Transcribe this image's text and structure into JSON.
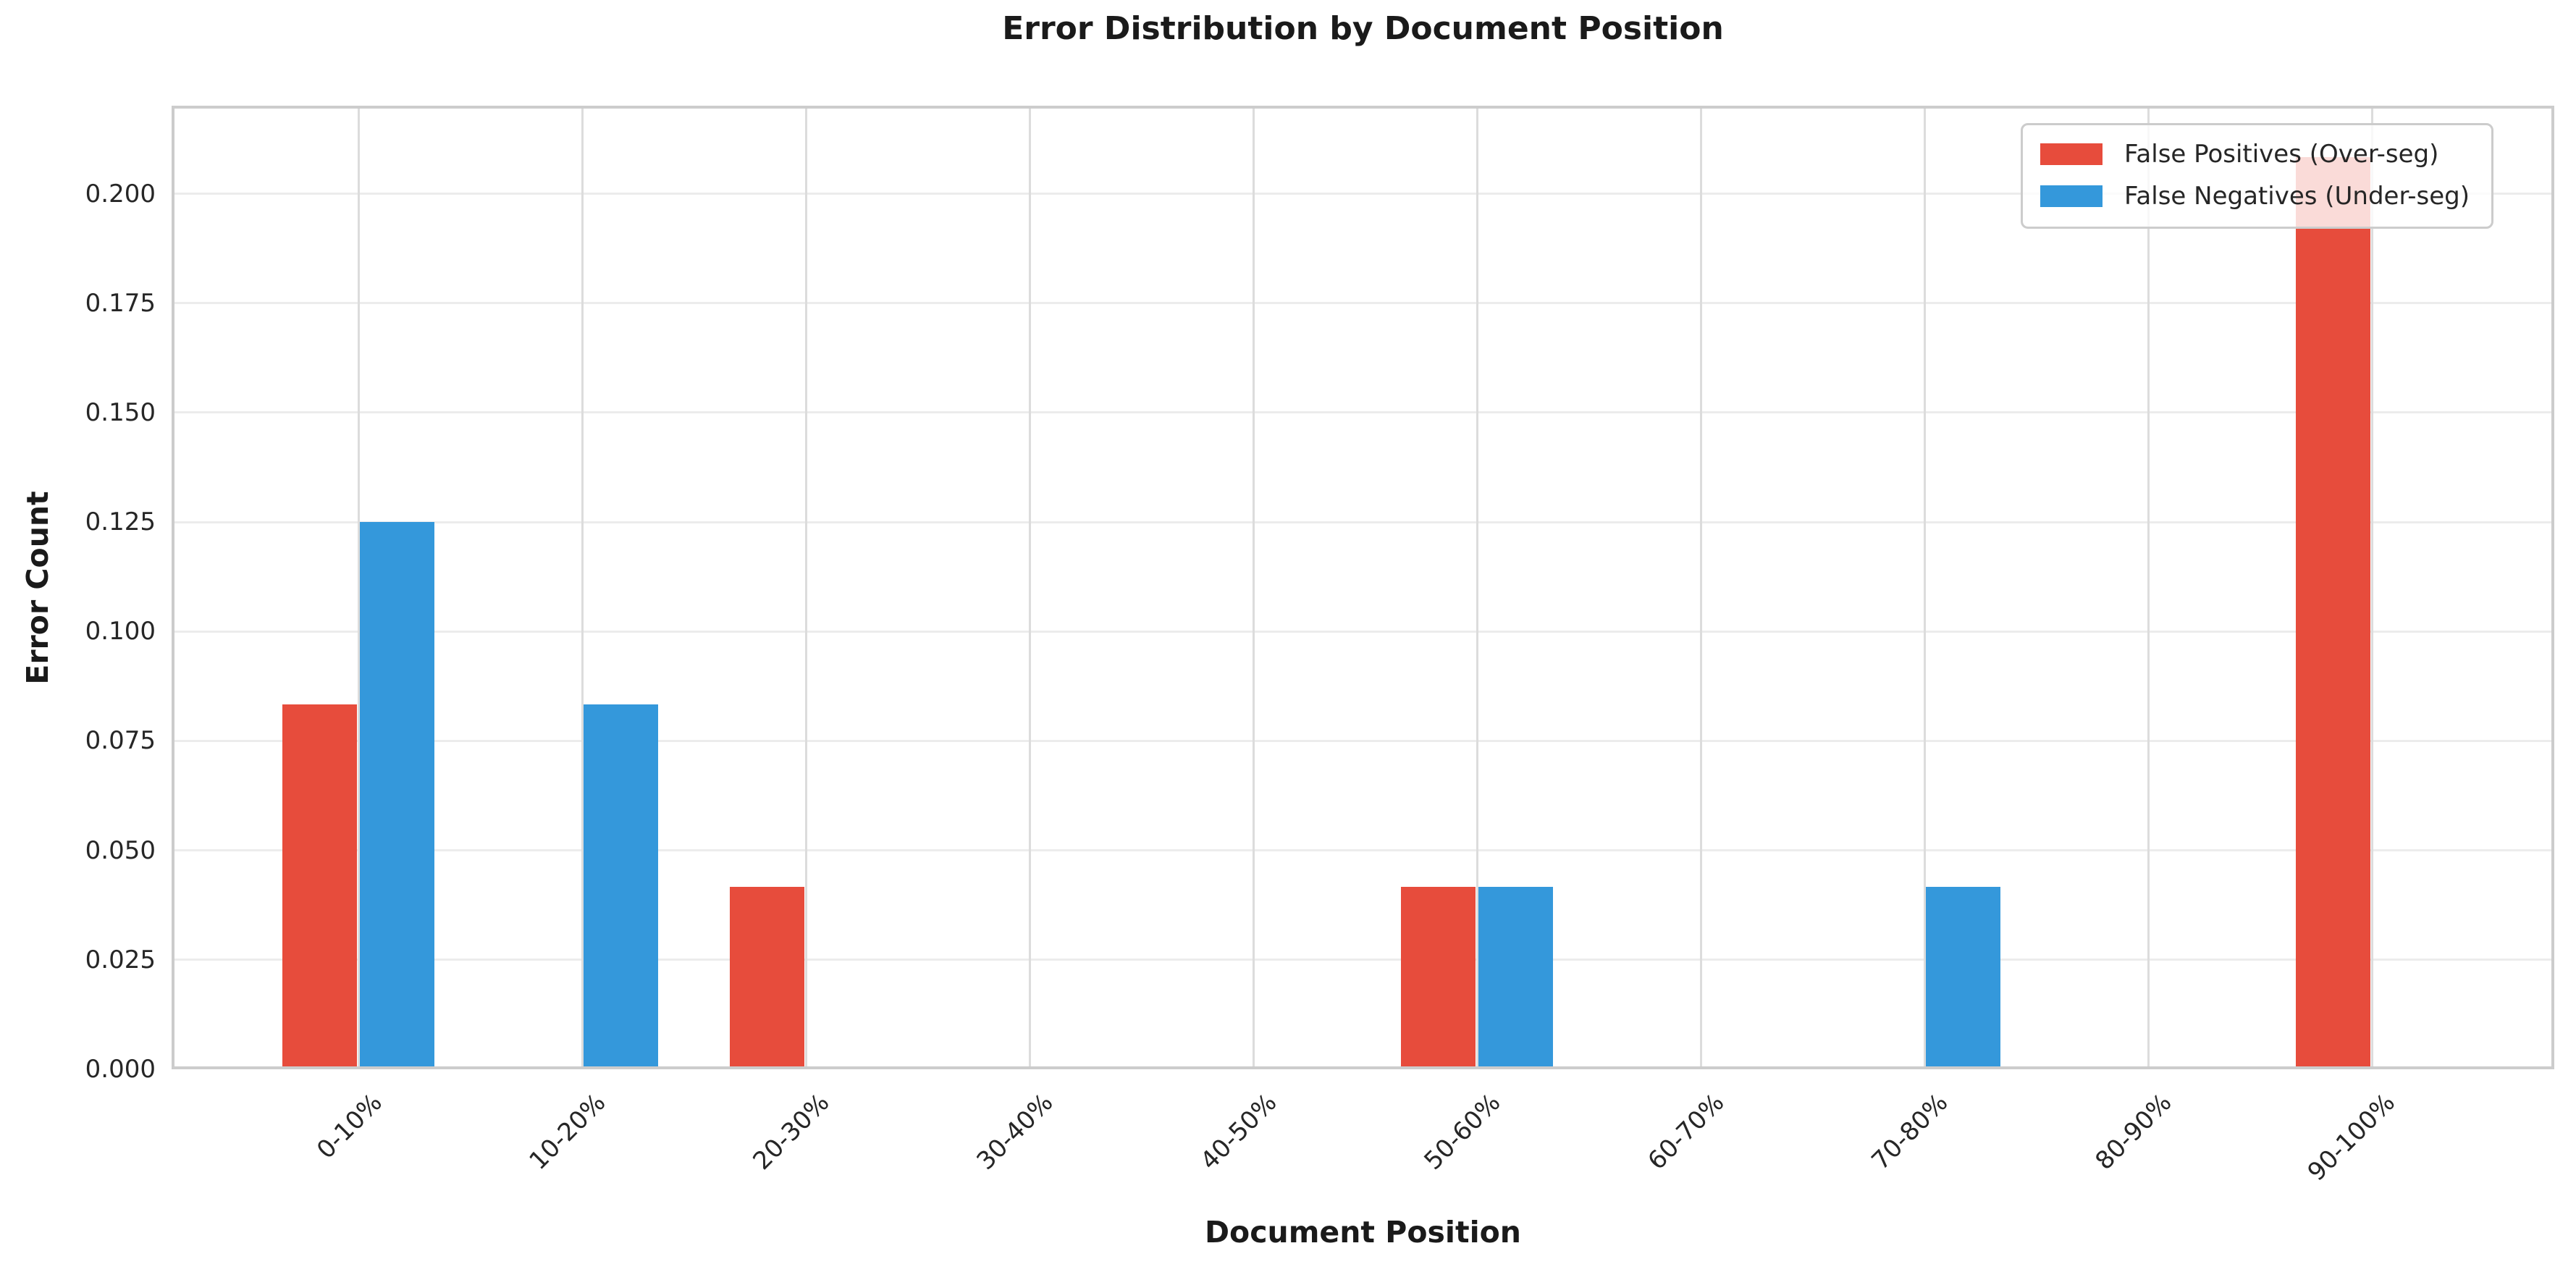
{
  "chart_data": {
    "type": "bar",
    "title": "Error Distribution by Document Position",
    "xlabel": "Document Position",
    "ylabel": "Error Count",
    "categories": [
      "0-10%",
      "10-20%",
      "20-30%",
      "30-40%",
      "40-50%",
      "50-60%",
      "60-70%",
      "70-80%",
      "80-90%",
      "90-100%"
    ],
    "series": [
      {
        "name": "False Positives (Over-seg)",
        "slug": "false-positives",
        "color": "#e74c3c",
        "values": [
          0.0833,
          0,
          0.0417,
          0,
          0,
          0.0417,
          0,
          0,
          0,
          0.2083
        ]
      },
      {
        "name": "False Negatives (Under-seg)",
        "slug": "false-negatives",
        "color": "#3498db",
        "values": [
          0.125,
          0.0833,
          0,
          0,
          0,
          0.0417,
          0,
          0.0417,
          0,
          0
        ]
      }
    ],
    "yticks": [
      "0.000",
      "0.025",
      "0.050",
      "0.075",
      "0.100",
      "0.125",
      "0.150",
      "0.175",
      "0.200"
    ],
    "ytick_step": 0.025,
    "ylim": [
      0,
      0.2201
    ],
    "grid": true,
    "legend_position": "upper right"
  }
}
